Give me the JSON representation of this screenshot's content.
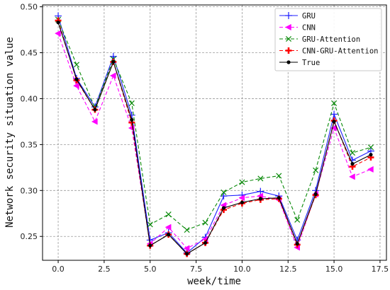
{
  "chart_data": {
    "type": "line",
    "title": "",
    "xlabel": "week/time",
    "ylabel": "Network security situation value",
    "xlim": [
      -0.85,
      17.85
    ],
    "ylim": [
      0.224,
      0.502
    ],
    "xticks": [
      0.0,
      2.5,
      5.0,
      7.5,
      10.0,
      12.5,
      15.0,
      17.5
    ],
    "xtick_labels": [
      "0.0",
      "2.5",
      "5.0",
      "7.5",
      "10.0",
      "12.5",
      "15.0",
      "17.5"
    ],
    "yticks": [
      0.25,
      0.3,
      0.35,
      0.4,
      0.45,
      0.5
    ],
    "ytick_labels": [
      "0.25",
      "0.30",
      "0.35",
      "0.40",
      "0.45",
      "0.50"
    ],
    "grid": true,
    "legend_position": "top-right",
    "x": [
      0,
      1,
      2,
      3,
      4,
      5,
      6,
      7,
      8,
      9,
      10,
      11,
      12,
      13,
      14,
      15,
      16,
      17
    ],
    "series": [
      {
        "name": "GRU",
        "color": "#1f1fff",
        "marker": "plus",
        "dash": "solid",
        "values": [
          0.49,
          0.422,
          0.391,
          0.446,
          0.382,
          0.246,
          0.254,
          0.232,
          0.249,
          0.294,
          0.295,
          0.299,
          0.294,
          0.246,
          0.3,
          0.383,
          0.333,
          0.343
        ]
      },
      {
        "name": "CNN",
        "color": "#ff00ff",
        "marker": "triangle-left",
        "dash": "dashed",
        "values": [
          0.471,
          0.414,
          0.375,
          0.425,
          0.368,
          0.242,
          0.26,
          0.237,
          0.247,
          0.284,
          0.292,
          0.294,
          0.29,
          0.238,
          0.296,
          0.368,
          0.315,
          0.323
        ]
      },
      {
        "name": "GRU-Attention",
        "color": "#0a8a0a",
        "marker": "x",
        "dash": "dashed",
        "values": [
          0.486,
          0.437,
          0.39,
          0.443,
          0.395,
          0.263,
          0.274,
          0.257,
          0.265,
          0.298,
          0.309,
          0.313,
          0.316,
          0.268,
          0.322,
          0.395,
          0.341,
          0.347
        ]
      },
      {
        "name": "CNN-GRU-Attention",
        "color": "#ff0000",
        "marker": "plus-bold",
        "dash": "dashed",
        "values": [
          0.485,
          0.42,
          0.388,
          0.44,
          0.374,
          0.24,
          0.252,
          0.231,
          0.243,
          0.279,
          0.286,
          0.29,
          0.291,
          0.241,
          0.295,
          0.376,
          0.326,
          0.336
        ]
      },
      {
        "name": "True",
        "color": "#000000",
        "marker": "dot",
        "dash": "solid",
        "values": [
          0.483,
          0.421,
          0.388,
          0.44,
          0.377,
          0.24,
          0.252,
          0.231,
          0.243,
          0.281,
          0.287,
          0.291,
          0.292,
          0.242,
          0.296,
          0.375,
          0.329,
          0.339
        ]
      }
    ]
  }
}
